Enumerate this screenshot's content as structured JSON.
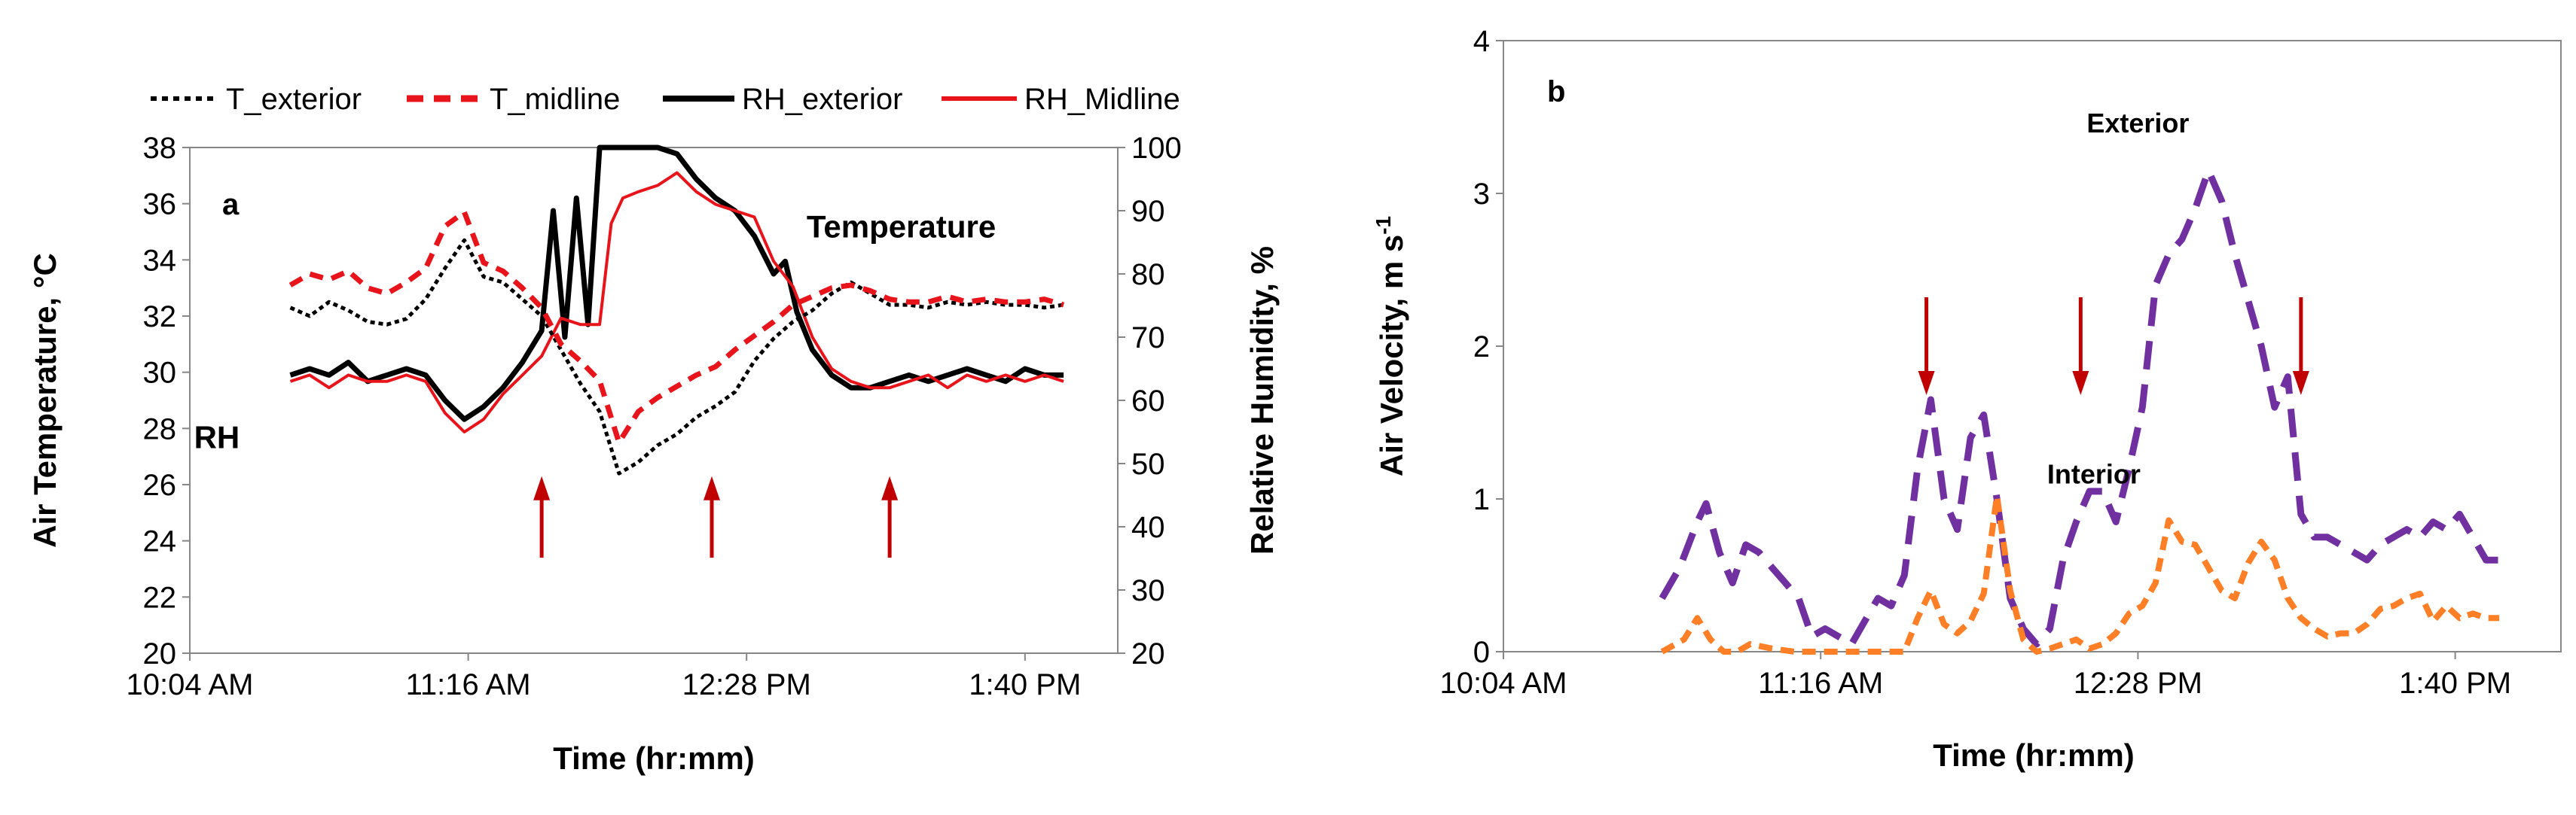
{
  "chart_data": [
    {
      "panel": "a",
      "type": "line",
      "x_type": "time",
      "xlabel": "Time (hr:mm)",
      "ylabel": "Air Temperature, °C",
      "y2label": "Relative Humidity, %",
      "xlim": [
        "10:04",
        "14:04"
      ],
      "xticks": [
        "10:04 AM",
        "11:16 AM",
        "12:28 PM",
        "1:40 PM"
      ],
      "xtick_times": [
        "10:04",
        "11:16",
        "12:28",
        "13:40"
      ],
      "ylim": [
        20,
        38
      ],
      "yticks": [
        20,
        22,
        24,
        26,
        28,
        30,
        32,
        34,
        36,
        38
      ],
      "y2lim": [
        20,
        100
      ],
      "y2ticks": [
        20,
        30,
        40,
        50,
        60,
        70,
        80,
        90,
        100
      ],
      "legend": [
        "T_exterior",
        "T_midline",
        "RH_exterior",
        "RH_Midline"
      ],
      "annotations": [
        {
          "text": "Temperature",
          "x": "13:08",
          "y": 34.8,
          "axis": "y"
        },
        {
          "text": "RH",
          "x": "10:11",
          "y": 27.3,
          "axis": "y"
        }
      ],
      "arrows": [
        {
          "x": "11:35",
          "y_from": 23.4,
          "y_to": 26.3
        },
        {
          "x": "12:19",
          "y_from": 23.4,
          "y_to": 26.3
        },
        {
          "x": "13:05",
          "y_from": 23.4,
          "y_to": 26.3
        }
      ],
      "series": [
        {
          "name": "T_exterior",
          "axis": "y",
          "color": "#000000",
          "style": "dotted",
          "x": [
            "10:30",
            "10:35",
            "10:40",
            "10:45",
            "10:50",
            "10:55",
            "11:00",
            "11:05",
            "11:10",
            "11:15",
            "11:20",
            "11:25",
            "11:30",
            "11:35",
            "11:40",
            "11:45",
            "11:50",
            "11:55",
            "12:00",
            "12:05",
            "12:10",
            "12:15",
            "12:20",
            "12:25",
            "12:30",
            "12:35",
            "12:40",
            "12:45",
            "12:50",
            "12:55",
            "13:00",
            "13:05",
            "13:10",
            "13:15",
            "13:20",
            "13:25",
            "13:30",
            "13:35",
            "13:40",
            "13:45",
            "13:50"
          ],
          "values": [
            32.3,
            32.0,
            32.5,
            32.2,
            31.8,
            31.7,
            31.9,
            32.6,
            33.7,
            34.7,
            33.4,
            33.2,
            32.6,
            32.0,
            30.8,
            29.6,
            28.6,
            26.4,
            26.8,
            27.4,
            27.8,
            28.4,
            28.8,
            29.3,
            30.4,
            31.2,
            31.8,
            32.2,
            32.8,
            33.2,
            32.8,
            32.4,
            32.4,
            32.3,
            32.5,
            32.4,
            32.5,
            32.4,
            32.4,
            32.3,
            32.4
          ]
        },
        {
          "name": "T_midline",
          "axis": "y",
          "color": "#e8141b",
          "style": "dashed",
          "x": [
            "10:30",
            "10:35",
            "10:40",
            "10:45",
            "10:50",
            "10:55",
            "11:00",
            "11:05",
            "11:10",
            "11:15",
            "11:20",
            "11:25",
            "11:30",
            "11:35",
            "11:40",
            "11:45",
            "11:50",
            "11:55",
            "12:00",
            "12:05",
            "12:10",
            "12:15",
            "12:20",
            "12:25",
            "12:30",
            "12:35",
            "12:40",
            "12:45",
            "12:50",
            "12:55",
            "13:00",
            "13:05",
            "13:10",
            "13:15",
            "13:20",
            "13:25",
            "13:30",
            "13:35",
            "13:40",
            "13:45",
            "13:50"
          ],
          "values": [
            33.1,
            33.5,
            33.3,
            33.6,
            33.0,
            32.8,
            33.2,
            33.7,
            35.2,
            35.7,
            33.9,
            33.6,
            33.0,
            32.3,
            31.0,
            30.4,
            29.7,
            27.5,
            28.6,
            29.1,
            29.5,
            29.9,
            30.2,
            30.8,
            31.3,
            31.8,
            32.4,
            32.7,
            33.0,
            33.1,
            32.9,
            32.6,
            32.5,
            32.5,
            32.7,
            32.5,
            32.6,
            32.5,
            32.5,
            32.6,
            32.4
          ]
        },
        {
          "name": "RH_exterior",
          "axis": "y2",
          "color": "#000000",
          "style": "solid",
          "x": [
            "10:30",
            "10:35",
            "10:40",
            "10:45",
            "10:50",
            "10:55",
            "11:00",
            "11:05",
            "11:10",
            "11:15",
            "11:20",
            "11:25",
            "11:30",
            "11:35",
            "11:38",
            "11:41",
            "11:44",
            "11:47",
            "11:50",
            "11:53",
            "11:55",
            "12:00",
            "12:05",
            "12:10",
            "12:15",
            "12:20",
            "12:25",
            "12:30",
            "12:35",
            "12:38",
            "12:41",
            "12:45",
            "12:50",
            "12:55",
            "13:00",
            "13:05",
            "13:10",
            "13:15",
            "13:20",
            "13:25",
            "13:30",
            "13:35",
            "13:40",
            "13:45",
            "13:50"
          ],
          "values": [
            64,
            65,
            64,
            66,
            63,
            64,
            65,
            64,
            60,
            57,
            59,
            62,
            66,
            71,
            90,
            70,
            92,
            72,
            100,
            100,
            100,
            100,
            100,
            99,
            95,
            92,
            90,
            86,
            80,
            82,
            74,
            68,
            64,
            62,
            62,
            63,
            64,
            63,
            64,
            65,
            64,
            63,
            65,
            64,
            64
          ]
        },
        {
          "name": "RH_Midline",
          "axis": "y2",
          "color": "#e8141b",
          "style": "solid",
          "x": [
            "10:30",
            "10:35",
            "10:40",
            "10:45",
            "10:50",
            "10:55",
            "11:00",
            "11:05",
            "11:10",
            "11:15",
            "11:20",
            "11:25",
            "11:30",
            "11:35",
            "11:40",
            "11:45",
            "11:50",
            "11:53",
            "11:56",
            "12:00",
            "12:05",
            "12:10",
            "12:15",
            "12:20",
            "12:25",
            "12:30",
            "12:35",
            "12:40",
            "12:45",
            "12:50",
            "12:55",
            "13:00",
            "13:05",
            "13:10",
            "13:15",
            "13:20",
            "13:25",
            "13:30",
            "13:35",
            "13:40",
            "13:45",
            "13:50"
          ],
          "values": [
            63,
            64,
            62,
            64,
            63,
            63,
            64,
            63,
            58,
            55,
            57,
            61,
            64,
            67,
            73,
            72,
            72,
            88,
            92,
            93,
            94,
            96,
            93,
            91,
            90,
            89,
            82,
            78,
            70,
            65,
            63,
            62,
            62,
            63,
            64,
            62,
            64,
            63,
            64,
            63,
            64,
            63
          ]
        }
      ]
    },
    {
      "panel": "b",
      "type": "line",
      "x_type": "time",
      "xlabel": "Time (hr:mm)",
      "ylabel": "Air Velocity, m s",
      "ylabel_sup": "-1",
      "xlim": [
        "10:04",
        "14:04"
      ],
      "xticks": [
        "10:04 AM",
        "11:16 AM",
        "12:28 PM",
        "1:40 PM"
      ],
      "xtick_times": [
        "10:04",
        "11:16",
        "12:28",
        "13:40"
      ],
      "ylim": [
        0,
        4
      ],
      "yticks": [
        0,
        1,
        2,
        3,
        4
      ],
      "annotations": [
        {
          "text": "Exterior",
          "x": "12:28",
          "y": 3.4
        },
        {
          "text": "Interior",
          "x": "12:18",
          "y": 1.1
        }
      ],
      "arrows": [
        {
          "x": "11:40",
          "y_from": 2.32,
          "y_to": 1.68
        },
        {
          "x": "12:15",
          "y_from": 2.32,
          "y_to": 1.68
        },
        {
          "x": "13:05",
          "y_from": 2.32,
          "y_to": 1.68
        }
      ],
      "series": [
        {
          "name": "Exterior",
          "color": "#7030a0",
          "style": "dashed",
          "x": [
            "10:40",
            "10:44",
            "10:48",
            "10:50",
            "10:53",
            "10:56",
            "10:59",
            "11:02",
            "11:05",
            "11:08",
            "11:11",
            "11:14",
            "11:17",
            "11:20",
            "11:23",
            "11:26",
            "11:29",
            "11:32",
            "11:35",
            "11:38",
            "11:41",
            "11:44",
            "11:47",
            "11:50",
            "11:53",
            "11:56",
            "11:59",
            "12:02",
            "12:05",
            "12:08",
            "12:11",
            "12:14",
            "12:17",
            "12:20",
            "12:23",
            "12:26",
            "12:29",
            "12:32",
            "12:35",
            "12:38",
            "12:41",
            "12:44",
            "12:47",
            "12:50",
            "12:53",
            "12:56",
            "12:59",
            "13:02",
            "13:05",
            "13:08",
            "13:11",
            "13:14",
            "13:17",
            "13:20",
            "13:23",
            "13:26",
            "13:29",
            "13:32",
            "13:35",
            "13:38",
            "13:41",
            "13:44",
            "13:47",
            "13:50"
          ],
          "values": [
            0.35,
            0.55,
            0.85,
            0.97,
            0.65,
            0.45,
            0.7,
            0.65,
            0.55,
            0.45,
            0.35,
            0.1,
            0.15,
            0.1,
            0.05,
            0.2,
            0.35,
            0.3,
            0.5,
            1.2,
            1.65,
            1.0,
            0.8,
            1.4,
            1.55,
            1.0,
            0.35,
            0.15,
            0.05,
            0.15,
            0.6,
            0.85,
            1.05,
            1.05,
            0.85,
            1.2,
            1.6,
            2.4,
            2.6,
            2.7,
            2.9,
            3.15,
            2.95,
            2.6,
            2.3,
            2.0,
            1.6,
            1.8,
            0.9,
            0.75,
            0.75,
            0.7,
            0.65,
            0.6,
            0.7,
            0.75,
            0.8,
            0.75,
            0.85,
            0.8,
            0.9,
            0.75,
            0.6,
            0.6
          ]
        },
        {
          "name": "Interior",
          "color": "#ff7f27",
          "style": "dashed",
          "x": [
            "10:40",
            "10:45",
            "10:48",
            "10:51",
            "10:54",
            "10:57",
            "11:00",
            "11:05",
            "11:10",
            "11:15",
            "11:20",
            "11:25",
            "11:30",
            "11:35",
            "11:38",
            "11:41",
            "11:44",
            "11:47",
            "11:50",
            "11:53",
            "11:56",
            "11:59",
            "12:02",
            "12:05",
            "12:08",
            "12:11",
            "12:14",
            "12:17",
            "12:20",
            "12:23",
            "12:26",
            "12:29",
            "12:32",
            "12:35",
            "12:38",
            "12:41",
            "12:44",
            "12:47",
            "12:50",
            "12:53",
            "12:56",
            "12:59",
            "13:02",
            "13:05",
            "13:08",
            "13:11",
            "13:14",
            "13:17",
            "13:20",
            "13:23",
            "13:26",
            "13:29",
            "13:32",
            "13:35",
            "13:38",
            "13:41",
            "13:44",
            "13:47",
            "13:50"
          ],
          "values": [
            0.0,
            0.08,
            0.22,
            0.08,
            0.0,
            0.0,
            0.05,
            0.02,
            0.0,
            0.0,
            0.0,
            0.0,
            0.0,
            0.0,
            0.22,
            0.4,
            0.18,
            0.12,
            0.2,
            0.38,
            1.02,
            0.4,
            0.08,
            0.0,
            0.02,
            0.05,
            0.08,
            0.02,
            0.05,
            0.12,
            0.25,
            0.3,
            0.45,
            0.86,
            0.72,
            0.7,
            0.55,
            0.4,
            0.35,
            0.58,
            0.72,
            0.6,
            0.35,
            0.22,
            0.15,
            0.1,
            0.12,
            0.12,
            0.18,
            0.28,
            0.3,
            0.35,
            0.38,
            0.2,
            0.3,
            0.22,
            0.25,
            0.22,
            0.22
          ]
        }
      ]
    }
  ]
}
